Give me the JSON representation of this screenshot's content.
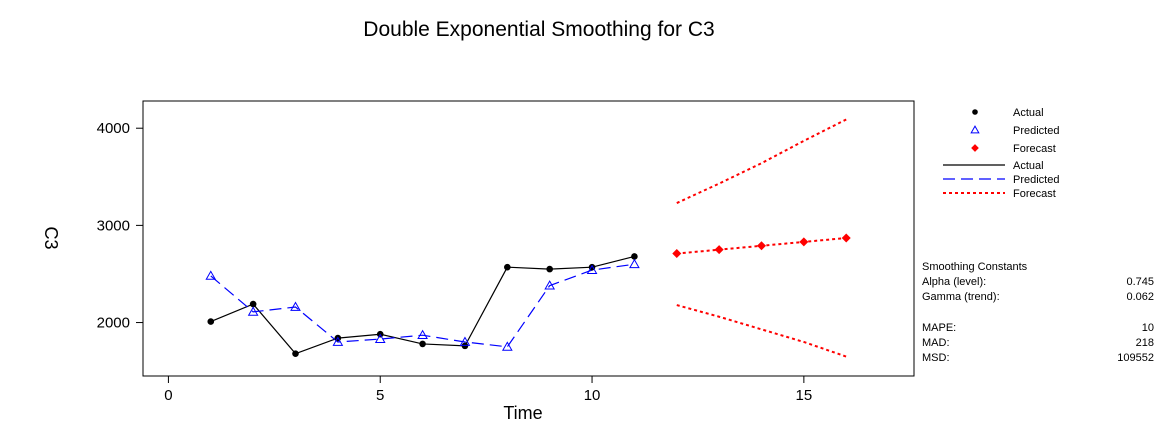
{
  "chart_data": {
    "type": "line",
    "title": "Double Exponential Smoothing for C3",
    "xlabel": "Time",
    "ylabel": "C3",
    "xlim": [
      -0.6,
      17.6
    ],
    "ylim": [
      1450,
      4280
    ],
    "xticks": [
      0,
      5,
      10,
      15
    ],
    "yticks": [
      2000,
      3000,
      4000
    ],
    "x_tick_labels": [
      "0",
      "5",
      "10",
      "15"
    ],
    "y_tick_labels": [
      "2000",
      "3000",
      "4000"
    ],
    "grid": false,
    "legend_position": "right",
    "series": [
      {
        "name": "Actual",
        "color": "#000000",
        "marker": "dot",
        "line_style": "solid",
        "x": [
          1,
          2,
          3,
          4,
          5,
          6,
          7,
          8,
          9,
          10,
          11
        ],
        "values": [
          2010,
          2190,
          1680,
          1840,
          1880,
          1780,
          1760,
          2570,
          2550,
          2570,
          2680
        ]
      },
      {
        "name": "Predicted",
        "color": "#0000ff",
        "marker": "triangle",
        "line_style": "dashed",
        "x": [
          1,
          2,
          3,
          4,
          5,
          6,
          7,
          8,
          9,
          10,
          11
        ],
        "values": [
          2480,
          2110,
          2160,
          1800,
          1830,
          1870,
          1800,
          1750,
          2380,
          2540,
          2600
        ]
      },
      {
        "name": "Forecast",
        "color": "#ff0000",
        "marker": "diamond",
        "line_style": "dotted",
        "x": [
          12,
          13,
          14,
          15,
          16
        ],
        "values": [
          2710,
          2750,
          2790,
          2830,
          2870
        ]
      }
    ],
    "bands": [
      {
        "series": "Forecast",
        "bound": "upper",
        "x": [
          12,
          13,
          14,
          15,
          16
        ],
        "values": [
          3230,
          3430,
          3640,
          3870,
          4090
        ]
      },
      {
        "series": "Forecast",
        "bound": "lower",
        "x": [
          12,
          13,
          14,
          15,
          16
        ],
        "values": [
          2180,
          2060,
          1930,
          1800,
          1650
        ]
      }
    ],
    "legend": {
      "markers": [
        "Actual",
        "Predicted",
        "Forecast"
      ],
      "lines": [
        "Actual",
        "Predicted",
        "Forecast"
      ]
    },
    "stats": {
      "heading": "Smoothing Constants",
      "rows": [
        {
          "label": "Alpha (level):",
          "value": "0.745"
        },
        {
          "label": "Gamma (trend):",
          "value": "0.062"
        }
      ],
      "accuracy": [
        {
          "label": "MAPE:",
          "value": "10"
        },
        {
          "label": "MAD:",
          "value": "218"
        },
        {
          "label": "MSD:",
          "value": "109552"
        }
      ]
    }
  }
}
